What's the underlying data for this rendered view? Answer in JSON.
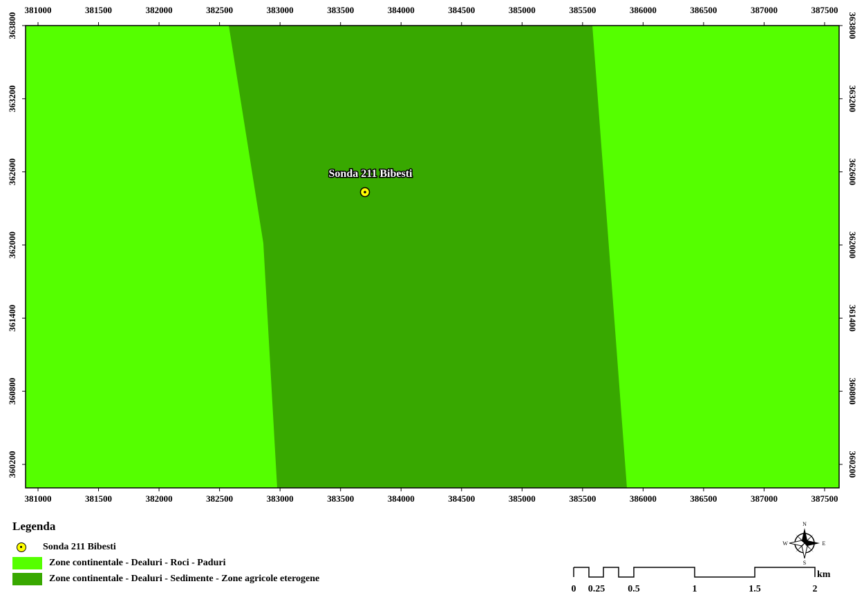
{
  "map": {
    "x_axis": {
      "ticks": [
        "381000",
        "381500",
        "382000",
        "382500",
        "383000",
        "383500",
        "384000",
        "384500",
        "385000",
        "385500",
        "386000",
        "386500",
        "387000",
        "387500"
      ]
    },
    "y_axis": {
      "ticks": [
        "363800",
        "363200",
        "362600",
        "362000",
        "361400",
        "360800",
        "360200"
      ]
    },
    "well": {
      "label": "Sonda 211 Bibesti",
      "x": 383740,
      "y": 362440
    },
    "colors": {
      "zone_rocks": "#55ff00",
      "zone_sediments": "#38a800",
      "point_fill": "#ffff00"
    }
  },
  "legend": {
    "title": "Legenda",
    "items": [
      {
        "label": "Sonda 211 Bibesti",
        "symbol": "point"
      },
      {
        "label": "Zone continentale - Dealuri - Roci - Paduri",
        "color": "#55ff00"
      },
      {
        "label": "Zone continentale - Dealuri - Sedimente - Zone agricole eterogene",
        "color": "#38a800"
      }
    ]
  },
  "scalebar": {
    "labels": [
      "0",
      "0.25",
      "0.5",
      "1",
      "1.5",
      "2"
    ],
    "unit": "km"
  },
  "north_arrow": {
    "n": "N",
    "s": "S",
    "e": "E",
    "w": "W"
  }
}
